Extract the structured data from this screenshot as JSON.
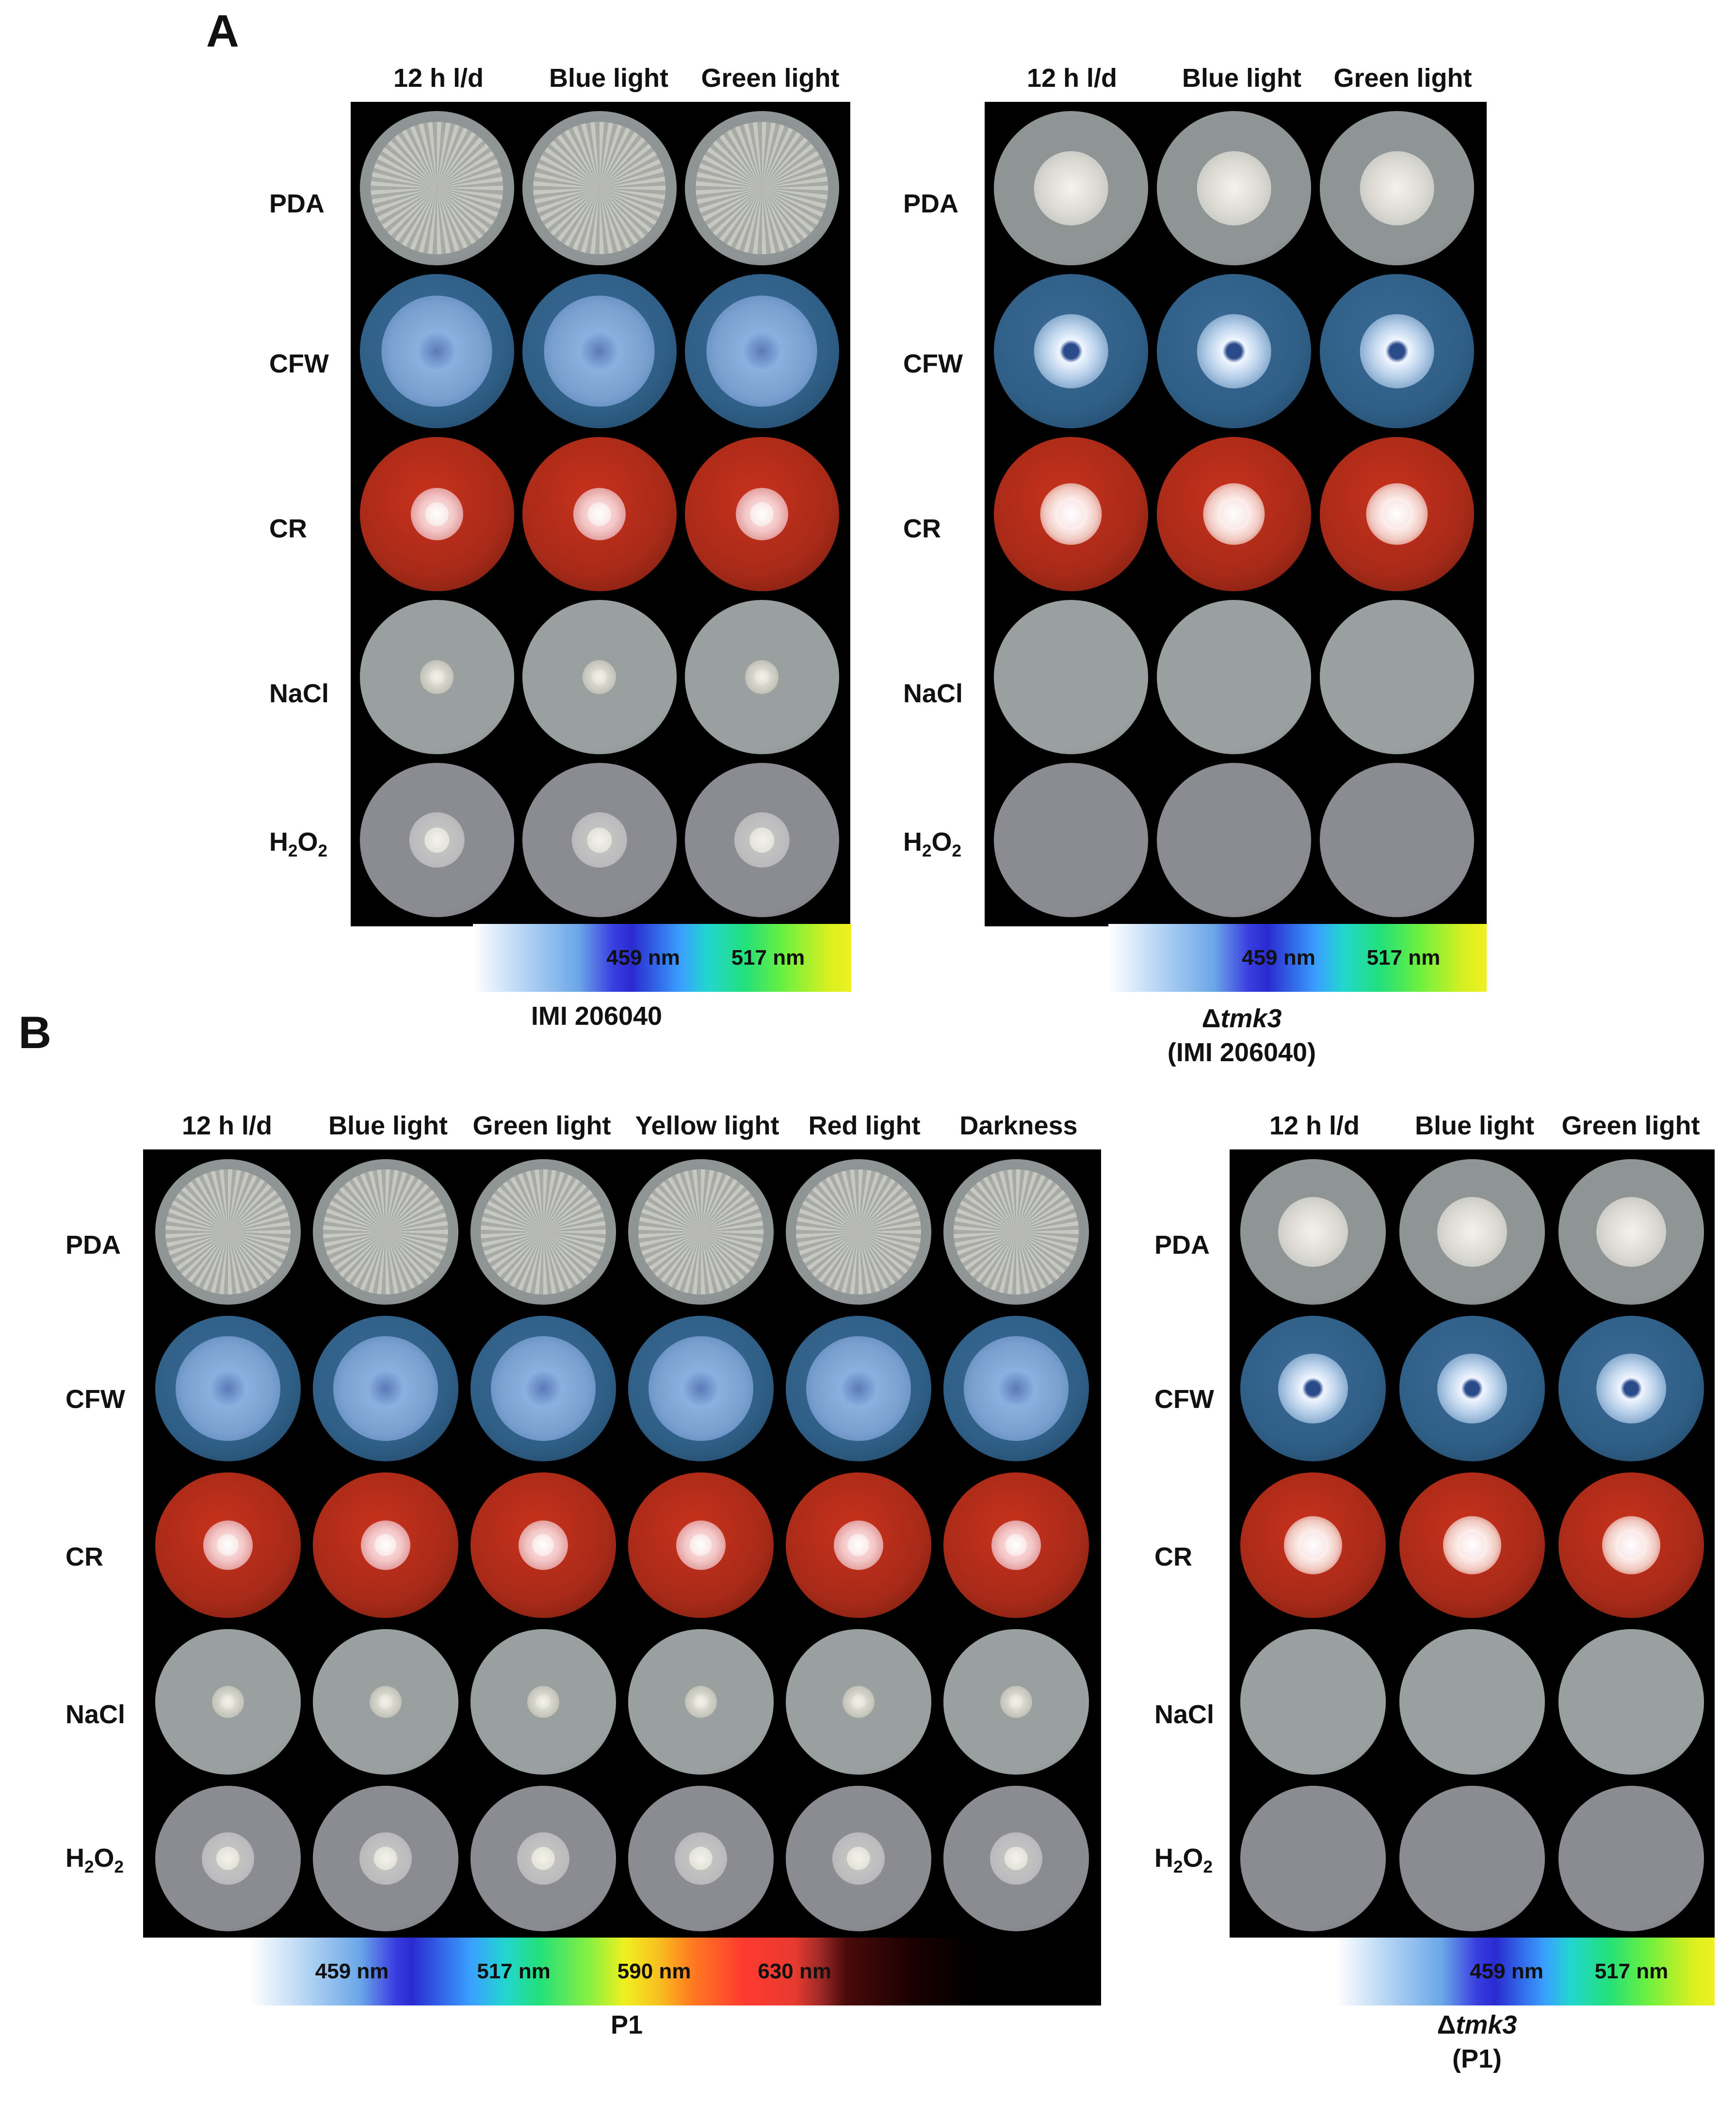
{
  "panel_a_letter": "A",
  "panel_b_letter": "B",
  "row_labels": [
    "PDA",
    "CFW",
    "CR",
    "NaCl"
  ],
  "h2o2_label": {
    "base": "H",
    "sub1": "2",
    "mid": "O",
    "sub2": "2"
  },
  "a_left": {
    "columns": [
      "12 h l/d",
      "Blue light",
      "Green light"
    ],
    "caption": "IMI 206040",
    "bar_labels": [
      "459 nm",
      "517 nm"
    ]
  },
  "a_right": {
    "columns": [
      "12 h l/d",
      "Blue light",
      "Green light"
    ],
    "caption_prefix": "Δ",
    "caption_gene": "tmk3",
    "caption_strain": "(IMI 206040)",
    "bar_labels": [
      "459 nm",
      "517 nm"
    ]
  },
  "b_left": {
    "columns": [
      "12 h l/d",
      "Blue light",
      "Green light",
      "Yellow light",
      "Red light",
      "Darkness"
    ],
    "caption": "P1",
    "bar_labels": [
      "459 nm",
      "517 nm",
      "590 nm",
      "630 nm"
    ]
  },
  "b_right": {
    "columns": [
      "12 h l/d",
      "Blue light",
      "Green light"
    ],
    "caption_prefix": "Δ",
    "caption_gene": "tmk3",
    "caption_strain": "(P1)",
    "bar_labels": [
      "459 nm",
      "517 nm"
    ]
  },
  "colors": {
    "pda": "#8f9494",
    "cfw": "#2f5f86",
    "cr": "#a82a18",
    "nacl": "#9aa0a0",
    "h2o2": "#8a8c92",
    "frame": "#000000"
  }
}
